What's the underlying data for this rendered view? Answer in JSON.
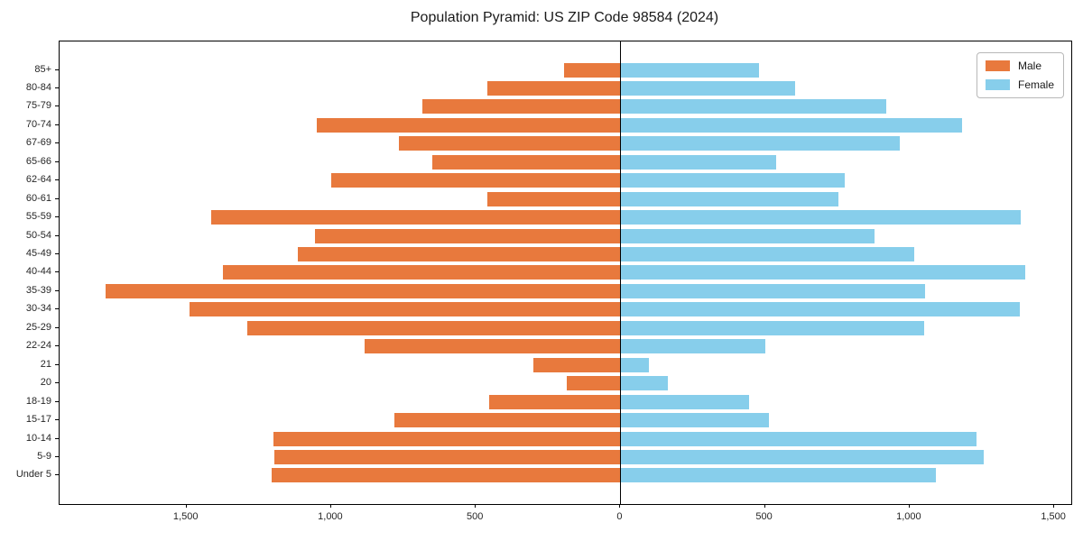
{
  "title": "Population Pyramid: US ZIP Code 98584 (2024)",
  "legend": {
    "male_label": "Male",
    "female_label": "Female"
  },
  "colors": {
    "male": "#E8793D",
    "female": "#87CEEB",
    "axis": "#000000",
    "tick_text": "#262626"
  },
  "chart_data": {
    "type": "bar",
    "subtype": "population-pyramid",
    "title": "Population Pyramid: US ZIP Code 98584 (2024)",
    "xlabel": "",
    "ylabel": "",
    "grid": false,
    "legend_position": "upper right",
    "xlim": [
      -1939,
      1559
    ],
    "x_ticks": [
      -1500,
      -1000,
      -500,
      0,
      500,
      1000,
      1500
    ],
    "x_tick_labels": [
      "1,500",
      "1,000",
      "500",
      "0",
      "500",
      "1,000",
      "1,500"
    ],
    "categories_top_to_bottom": [
      "85+",
      "80-84",
      "75-79",
      "70-74",
      "67-69",
      "65-66",
      "62-64",
      "60-61",
      "55-59",
      "50-54",
      "45-49",
      "40-44",
      "35-39",
      "30-34",
      "25-29",
      "22-24",
      "21",
      "20",
      "18-19",
      "15-17",
      "10-14",
      "5-9",
      "Under 5"
    ],
    "series": [
      {
        "name": "Male",
        "side": "left",
        "color": "#E8793D",
        "values": [
          195,
          460,
          685,
          1050,
          765,
          650,
          1000,
          460,
          1415,
          1055,
          1115,
          1375,
          1780,
          1490,
          1290,
          885,
          300,
          185,
          455,
          780,
          1200,
          1195,
          1205
        ]
      },
      {
        "name": "Female",
        "side": "right",
        "color": "#87CEEB",
        "values": [
          480,
          605,
          920,
          1180,
          965,
          540,
          775,
          755,
          1385,
          880,
          1015,
          1400,
          1055,
          1380,
          1050,
          500,
          100,
          165,
          445,
          515,
          1230,
          1255,
          1090
        ]
      }
    ]
  }
}
